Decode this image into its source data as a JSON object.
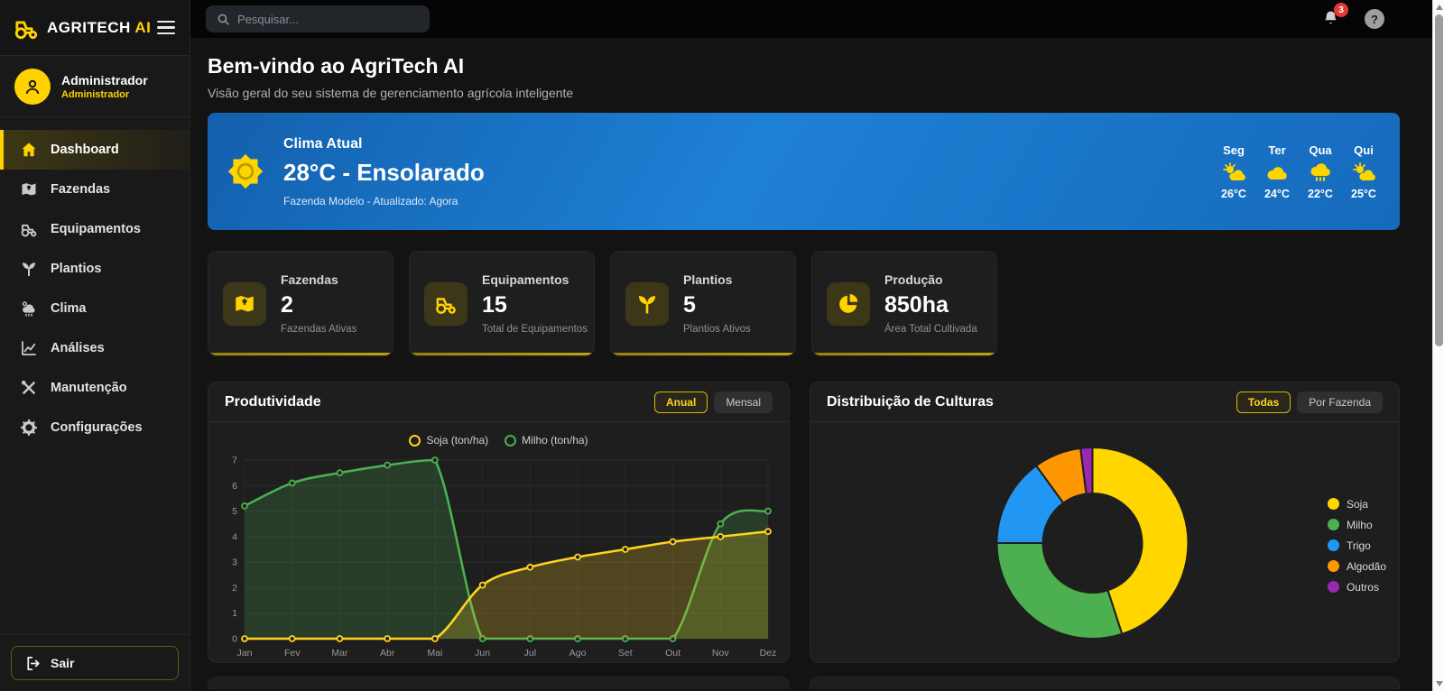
{
  "app": {
    "brand_primary": "AGRITECH",
    "brand_accent": "AI"
  },
  "topbar": {
    "search_placeholder": "Pesquisar...",
    "notification_count": "3",
    "help_glyph": "?"
  },
  "sidebar": {
    "profile": {
      "name": "Administrador",
      "role": "Administrador"
    },
    "items": [
      {
        "label": "Dashboard",
        "icon": "home-icon",
        "active": true
      },
      {
        "label": "Fazendas",
        "icon": "map-icon",
        "active": false
      },
      {
        "label": "Equipamentos",
        "icon": "tractor-icon",
        "active": false
      },
      {
        "label": "Plantios",
        "icon": "seedling-icon",
        "active": false
      },
      {
        "label": "Clima",
        "icon": "weather-icon",
        "active": false
      },
      {
        "label": "Análises",
        "icon": "chart-icon",
        "active": false
      },
      {
        "label": "Manutenção",
        "icon": "tools-icon",
        "active": false
      },
      {
        "label": "Configurações",
        "icon": "gear-icon",
        "active": false
      }
    ],
    "logout_label": "Sair"
  },
  "page": {
    "title": "Bem-vindo ao AgriTech AI",
    "subtitle": "Visão geral do seu sistema de gerenciamento agrícola inteligente"
  },
  "weather": {
    "card_title": "Clima Atual",
    "current": "28°C - Ensolarado",
    "meta": "Fazenda Modelo - Atualizado: Agora",
    "forecast": [
      {
        "day": "Seg",
        "icon": "sun-cloud-icon",
        "temp": "26°C"
      },
      {
        "day": "Ter",
        "icon": "cloud-icon",
        "temp": "24°C"
      },
      {
        "day": "Qua",
        "icon": "rain-icon",
        "temp": "22°C"
      },
      {
        "day": "Qui",
        "icon": "sun-cloud-icon",
        "temp": "25°C"
      }
    ]
  },
  "stats": [
    {
      "title": "Fazendas",
      "value": "2",
      "subtitle": "Fazendas Ativas",
      "icon": "map-icon"
    },
    {
      "title": "Equipamentos",
      "value": "15",
      "subtitle": "Total de Equipamentos",
      "icon": "tractor-icon"
    },
    {
      "title": "Plantios",
      "value": "5",
      "subtitle": "Plantios Ativos",
      "icon": "seedling-icon"
    },
    {
      "title": "Produção",
      "value": "850ha",
      "subtitle": "Área Total Cultivada",
      "icon": "pie-icon"
    }
  ],
  "productivity": {
    "title": "Produtividade",
    "buttons": [
      {
        "label": "Anual",
        "active": true
      },
      {
        "label": "Mensal",
        "active": false
      }
    ]
  },
  "distribution": {
    "title": "Distribuição de Culturas",
    "buttons": [
      {
        "label": "Todas",
        "active": true
      },
      {
        "label": "Por Fazenda",
        "active": false
      }
    ]
  },
  "chart_data": [
    {
      "type": "line",
      "title": "Produtividade",
      "categories": [
        "Jan",
        "Fev",
        "Mar",
        "Abr",
        "Mai",
        "Jun",
        "Jul",
        "Ago",
        "Set",
        "Out",
        "Nov",
        "Dez"
      ],
      "series": [
        {
          "name": "Soja (ton/ha)",
          "color": "#ffd31f",
          "values": [
            0,
            0,
            0,
            0,
            0,
            2.1,
            2.8,
            3.2,
            3.5,
            3.8,
            4.0,
            4.2
          ]
        },
        {
          "name": "Milho (ton/ha)",
          "color": "#4caf50",
          "values": [
            5.2,
            6.1,
            6.5,
            6.8,
            7.0,
            0,
            0,
            0,
            0,
            0,
            4.5,
            5.0
          ]
        }
      ],
      "ylim": [
        0,
        7
      ],
      "grid": true,
      "legend_position": "top"
    },
    {
      "type": "pie",
      "title": "Distribuição de Culturas",
      "donut": true,
      "categories": [
        "Soja",
        "Milho",
        "Trigo",
        "Algodão",
        "Outros"
      ],
      "values": [
        45,
        30,
        15,
        8,
        2
      ],
      "colors": [
        "#ffd600",
        "#4caf50",
        "#2196f3",
        "#ff9800",
        "#9c27b0"
      ],
      "legend_position": "right"
    }
  ],
  "colors": {
    "accent": "#ffd200",
    "badge_red": "#e53935",
    "weather_blue_from": "#1360ae",
    "weather_blue_to": "#1e80d4",
    "card_bg": "#1e1e1e"
  }
}
